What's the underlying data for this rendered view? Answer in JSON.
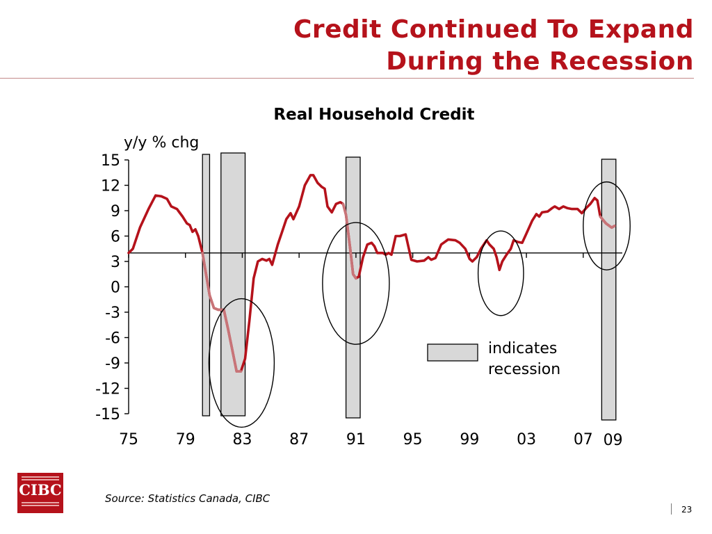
{
  "slide": {
    "title_line1": "Credit Continued To Expand",
    "title_line2": "During the Recession",
    "source": "Source: Statistics Canada, CIBC",
    "page_number": "23"
  },
  "logo": {
    "text": "CIBC",
    "icon": "cibc-logo-icon",
    "color": "#b5121b"
  },
  "chart_data": {
    "type": "line",
    "title": "Real Household Credit",
    "ylabel": "y/y % chg",
    "ylim": [
      -15,
      15
    ],
    "yticks": [
      15,
      12,
      9,
      6,
      3,
      0,
      -3,
      -6,
      -9,
      -12,
      -15
    ],
    "x_axis_crosses_at": 4,
    "xlim": [
      1975,
      2009.75
    ],
    "xtick_labels": [
      {
        "x": 1975,
        "label": "75"
      },
      {
        "x": 1979,
        "label": "79"
      },
      {
        "x": 1983,
        "label": "83"
      },
      {
        "x": 1987,
        "label": "87"
      },
      {
        "x": 1991,
        "label": "91"
      },
      {
        "x": 1995,
        "label": "95"
      },
      {
        "x": 1999,
        "label": "99"
      },
      {
        "x": 2003,
        "label": "03"
      },
      {
        "x": 2007,
        "label": "07"
      },
      {
        "x": 2009,
        "label": "09"
      }
    ],
    "line_color": "#b5121b",
    "highlight_color": "#c87478",
    "series": [
      {
        "values": [
          [
            1975.0,
            4.0
          ],
          [
            1975.3,
            4.5
          ],
          [
            1975.8,
            7.0
          ],
          [
            1976.4,
            9.2
          ],
          [
            1976.9,
            10.8
          ],
          [
            1977.3,
            10.7
          ],
          [
            1977.7,
            10.4
          ],
          [
            1978.0,
            9.5
          ],
          [
            1978.4,
            9.2
          ],
          [
            1978.8,
            8.3
          ],
          [
            1979.1,
            7.5
          ],
          [
            1979.3,
            7.3
          ],
          [
            1979.5,
            6.5
          ],
          [
            1979.7,
            6.8
          ],
          [
            1979.9,
            6.0
          ],
          [
            1980.2,
            4.0
          ],
          [
            1980.4,
            2.0
          ],
          [
            1980.7,
            -1.0
          ],
          [
            1981.0,
            -2.5
          ],
          [
            1981.3,
            -2.7
          ],
          [
            1981.7,
            -2.7
          ],
          [
            1982.0,
            -5.0
          ],
          [
            1982.3,
            -7.5
          ],
          [
            1982.6,
            -10.0
          ],
          [
            1982.9,
            -10.0
          ],
          [
            1983.2,
            -8.5
          ],
          [
            1983.5,
            -4.0
          ],
          [
            1983.8,
            1.0
          ],
          [
            1984.1,
            3.0
          ],
          [
            1984.4,
            3.3
          ],
          [
            1984.7,
            3.1
          ],
          [
            1984.9,
            3.3
          ],
          [
            1985.1,
            2.6
          ],
          [
            1985.5,
            5.0
          ],
          [
            1985.8,
            6.5
          ],
          [
            1986.1,
            8.0
          ],
          [
            1986.4,
            8.7
          ],
          [
            1986.6,
            8.0
          ],
          [
            1987.0,
            9.5
          ],
          [
            1987.4,
            12.0
          ],
          [
            1987.8,
            13.2
          ],
          [
            1988.0,
            13.2
          ],
          [
            1988.3,
            12.3
          ],
          [
            1988.6,
            11.8
          ],
          [
            1988.8,
            11.6
          ],
          [
            1989.0,
            9.5
          ],
          [
            1989.3,
            8.8
          ],
          [
            1989.6,
            9.8
          ],
          [
            1989.9,
            10.0
          ],
          [
            1990.1,
            9.8
          ],
          [
            1990.3,
            8.5
          ],
          [
            1990.6,
            4.5
          ],
          [
            1990.8,
            1.5
          ],
          [
            1991.0,
            1.0
          ],
          [
            1991.2,
            1.2
          ],
          [
            1991.5,
            3.5
          ],
          [
            1991.8,
            5.0
          ],
          [
            1992.1,
            5.2
          ],
          [
            1992.3,
            4.8
          ],
          [
            1992.5,
            4.0
          ],
          [
            1992.9,
            4.0
          ],
          [
            1993.1,
            3.8
          ],
          [
            1993.3,
            4.0
          ],
          [
            1993.5,
            3.8
          ],
          [
            1993.8,
            6.0
          ],
          [
            1994.1,
            6.0
          ],
          [
            1994.5,
            6.2
          ],
          [
            1994.9,
            3.2
          ],
          [
            1995.3,
            3.0
          ],
          [
            1995.8,
            3.1
          ],
          [
            1996.1,
            3.5
          ],
          [
            1996.3,
            3.2
          ],
          [
            1996.6,
            3.4
          ],
          [
            1997.0,
            5.0
          ],
          [
            1997.5,
            5.6
          ],
          [
            1998.0,
            5.5
          ],
          [
            1998.3,
            5.2
          ],
          [
            1998.7,
            4.5
          ],
          [
            1999.0,
            3.3
          ],
          [
            1999.2,
            3.0
          ],
          [
            1999.5,
            3.5
          ],
          [
            1999.8,
            4.5
          ],
          [
            2000.2,
            5.5
          ],
          [
            2000.4,
            5.0
          ],
          [
            2000.7,
            4.5
          ],
          [
            2000.9,
            3.5
          ],
          [
            2001.1,
            2.0
          ],
          [
            2001.3,
            3.0
          ],
          [
            2001.6,
            3.8
          ],
          [
            2001.9,
            4.5
          ],
          [
            2002.1,
            5.5
          ],
          [
            2002.4,
            5.3
          ],
          [
            2002.7,
            5.2
          ],
          [
            2003.0,
            6.3
          ],
          [
            2003.4,
            7.8
          ],
          [
            2003.7,
            8.6
          ],
          [
            2003.9,
            8.3
          ],
          [
            2004.1,
            8.8
          ],
          [
            2004.5,
            8.9
          ],
          [
            2004.8,
            9.3
          ],
          [
            2005.0,
            9.5
          ],
          [
            2005.3,
            9.2
          ],
          [
            2005.6,
            9.5
          ],
          [
            2005.9,
            9.3
          ],
          [
            2006.2,
            9.2
          ],
          [
            2006.6,
            9.2
          ],
          [
            2006.9,
            8.7
          ],
          [
            2007.2,
            9.3
          ],
          [
            2007.5,
            9.8
          ],
          [
            2007.8,
            10.5
          ],
          [
            2008.0,
            10.2
          ],
          [
            2008.2,
            8.3
          ],
          [
            2008.6,
            7.5
          ],
          [
            2009.0,
            7.0
          ],
          [
            2009.2,
            7.2
          ]
        ],
        "highlight_ranges": [
          [
            1980.0,
            1982.9
          ],
          [
            1990.1,
            1991.0
          ],
          [
            2008.1,
            2009.3
          ]
        ]
      }
    ],
    "recession_bars": [
      [
        1980.2,
        1980.7
      ],
      [
        1981.5,
        1983.2
      ],
      [
        1990.3,
        1991.3
      ],
      [
        2008.3,
        2009.3
      ]
    ],
    "circles": [
      {
        "x": 1982.95,
        "y": -9.0,
        "rx": 2.3,
        "ry": 7.6
      },
      {
        "x": 1991.0,
        "y": 0.4,
        "rx": 2.35,
        "ry": 7.2
      },
      {
        "x": 2001.2,
        "y": 1.6,
        "rx": 1.6,
        "ry": 5.0
      },
      {
        "x": 2008.65,
        "y": 7.2,
        "rx": 1.65,
        "ry": 5.2
      }
    ],
    "legend": {
      "label_line1": "indicates",
      "label_line2": "recession",
      "placement": "lower-right"
    },
    "colors": {
      "bar_fill": "#d8d8d8",
      "bar_stroke": "#000000"
    }
  }
}
